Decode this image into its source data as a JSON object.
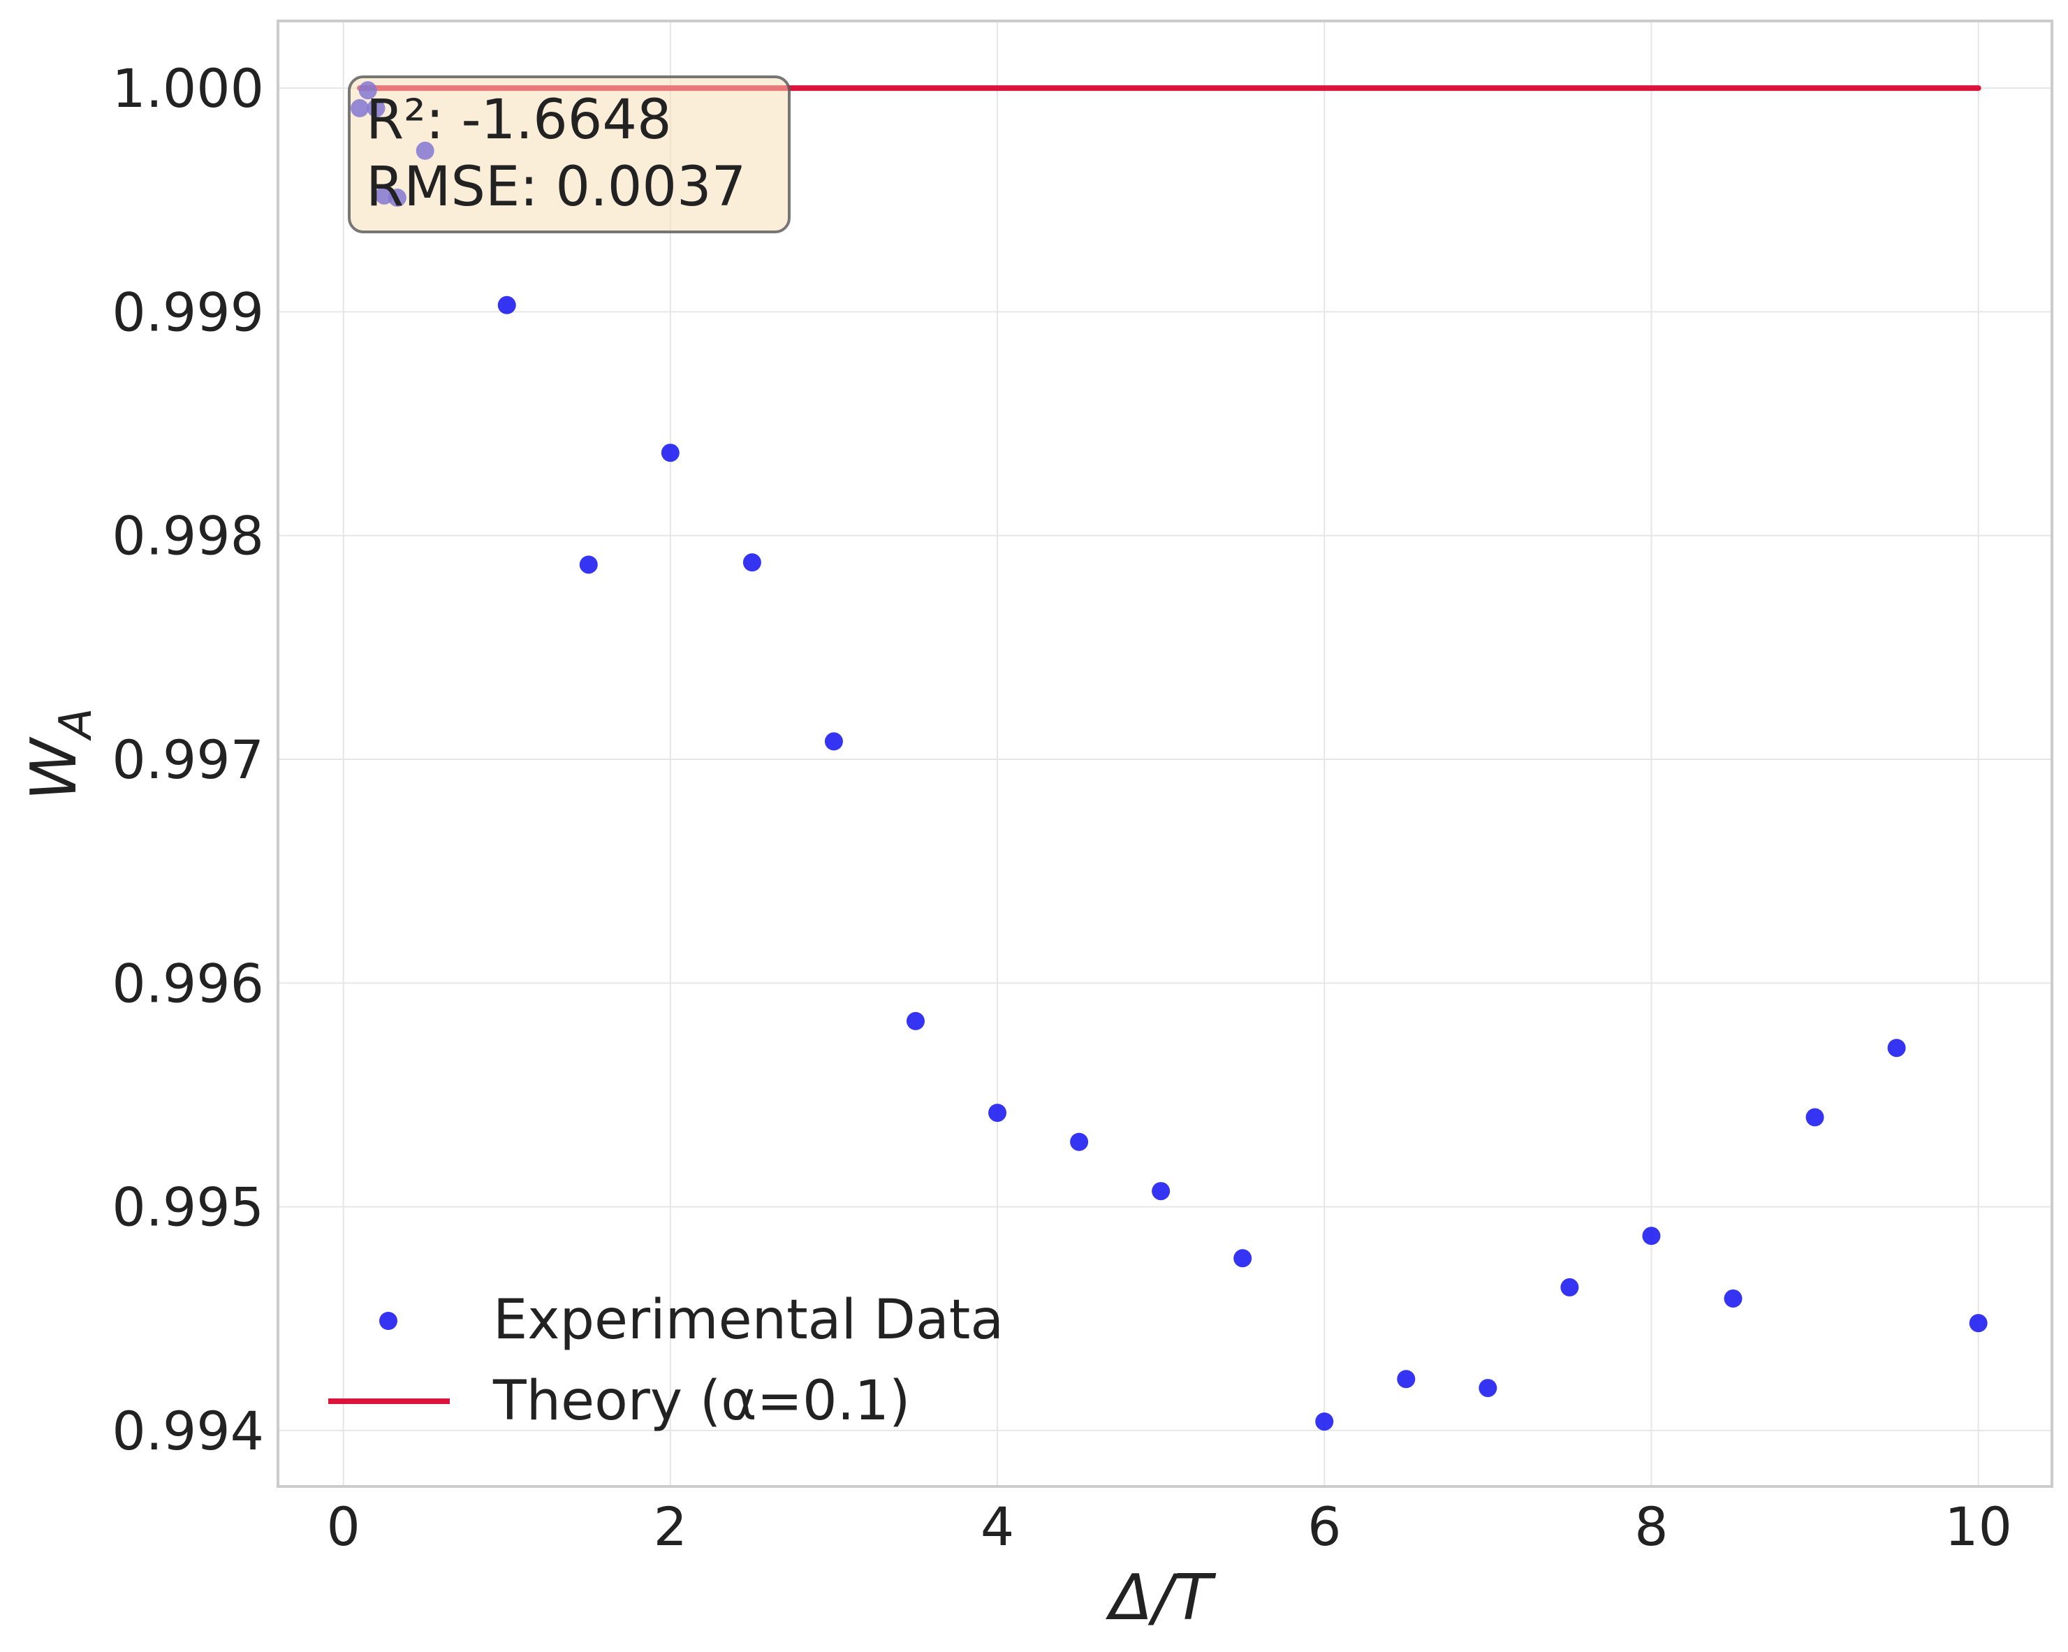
{
  "chart_data": {
    "type": "scatter",
    "xlabel": "Δ/T",
    "ylabel": "W_A",
    "xlim": [
      -0.4,
      10.45
    ],
    "ylim": [
      0.99375,
      1.0003
    ],
    "x_ticks": [
      0,
      2,
      4,
      6,
      8,
      10
    ],
    "x_tick_labels": [
      "0",
      "2",
      "4",
      "6",
      "8",
      "10"
    ],
    "y_ticks": [
      0.994,
      0.995,
      0.996,
      0.997,
      0.998,
      0.999,
      1.0
    ],
    "y_tick_labels": [
      "0.994",
      "0.995",
      "0.996",
      "0.997",
      "0.998",
      "0.999",
      "1.000"
    ],
    "grid": true,
    "legend_position": "lower-left",
    "series": [
      {
        "name": "Experimental Data",
        "kind": "scatter",
        "color": "#1010f0",
        "x": [
          0.1,
          0.15,
          0.2,
          0.25,
          0.33,
          0.5,
          1.0,
          1.5,
          2.0,
          2.5,
          3.0,
          3.5,
          4.0,
          4.5,
          5.0,
          5.5,
          6.0,
          6.5,
          7.0,
          7.5,
          8.0,
          8.5,
          9.0,
          9.5,
          10.0
        ],
        "y": [
          0.99991,
          0.99999,
          0.99991,
          0.99952,
          0.99951,
          0.99972,
          0.99903,
          0.99787,
          0.99837,
          0.99788,
          0.99708,
          0.99583,
          0.99542,
          0.99529,
          0.99507,
          0.99477,
          0.99404,
          0.99423,
          0.99419,
          0.99464,
          0.99487,
          0.99459,
          0.9954,
          0.99571,
          0.99448
        ]
      },
      {
        "name": "Theory (α=0.1)",
        "kind": "line",
        "color": "#dc143c",
        "x": [
          0.1,
          10.0
        ],
        "y": [
          1.0,
          1.0
        ]
      }
    ],
    "annotation": {
      "lines": [
        "R²: -1.6648",
        "RMSE: 0.0037"
      ]
    }
  }
}
